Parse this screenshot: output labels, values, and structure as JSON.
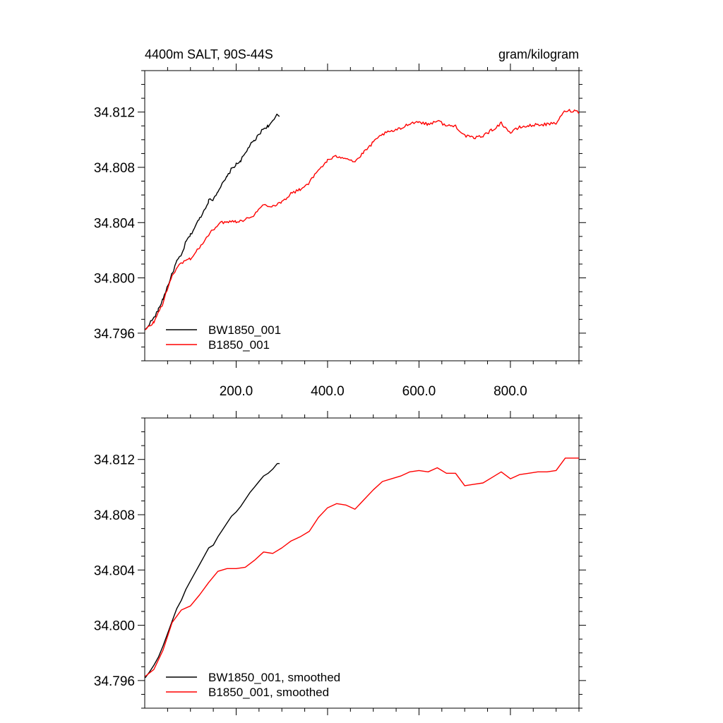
{
  "chart_data": [
    {
      "type": "line",
      "title": "4400m SALT, 90S-44S",
      "units": "gram/kilogram",
      "xlim": [
        0,
        950
      ],
      "ylim": [
        34.794,
        34.815
      ],
      "x_ticks": [
        200,
        400,
        600,
        800
      ],
      "x_tick_labels": [
        "200.0",
        "400.0",
        "600.0",
        "800.0"
      ],
      "y_ticks": [
        34.796,
        34.8,
        34.804,
        34.808,
        34.812
      ],
      "y_tick_labels": [
        "34.796",
        "34.800",
        "34.804",
        "34.808",
        "34.812"
      ],
      "grid": false,
      "legend_position": "bottom-left",
      "series": [
        {
          "name": "BW1850_001",
          "color": "#000000",
          "x": [
            1,
            10,
            20,
            30,
            40,
            50,
            60,
            70,
            80,
            90,
            100,
            110,
            120,
            130,
            140,
            150,
            160,
            170,
            180,
            190,
            200,
            210,
            220,
            230,
            240,
            250,
            260,
            270,
            280,
            290,
            295
          ],
          "y": [
            34.7962,
            34.7967,
            34.7971,
            34.7977,
            34.7985,
            34.7994,
            34.8003,
            34.8012,
            34.8016,
            34.8026,
            34.8031,
            34.8037,
            34.8043,
            34.8049,
            34.8056,
            34.8057,
            34.8063,
            34.8068,
            34.8073,
            34.8079,
            34.8082,
            34.8085,
            34.809,
            34.8096,
            34.8099,
            34.8104,
            34.8108,
            34.811,
            34.8113,
            34.8118,
            34.8117
          ]
        },
        {
          "name": "B1850_001",
          "color": "#ff0000",
          "x": [
            1,
            20,
            40,
            60,
            80,
            100,
            120,
            140,
            160,
            180,
            200,
            220,
            240,
            260,
            280,
            300,
            320,
            340,
            360,
            380,
            400,
            420,
            440,
            460,
            480,
            500,
            520,
            540,
            560,
            580,
            600,
            620,
            640,
            660,
            680,
            700,
            720,
            740,
            760,
            780,
            800,
            820,
            840,
            860,
            880,
            900,
            920,
            940,
            950
          ],
          "y": [
            34.7962,
            34.7968,
            34.7982,
            34.8002,
            34.8011,
            34.8014,
            34.8022,
            34.8031,
            34.8039,
            34.8041,
            34.8041,
            34.8042,
            34.8046,
            34.8053,
            34.8052,
            34.8055,
            34.8061,
            34.8064,
            34.8069,
            34.8078,
            34.8085,
            34.8088,
            34.8087,
            34.8084,
            34.8091,
            34.8098,
            34.8104,
            34.8106,
            34.8108,
            34.8112,
            34.8113,
            34.8111,
            34.8114,
            34.811,
            34.811,
            34.8103,
            34.8101,
            34.8103,
            34.8107,
            34.8112,
            34.8105,
            34.8109,
            34.811,
            34.8111,
            34.8111,
            34.8112,
            34.8121,
            34.8121,
            34.812
          ]
        }
      ]
    },
    {
      "type": "line",
      "title": "",
      "units": "",
      "xlim": [
        0,
        950
      ],
      "ylim": [
        34.794,
        34.815
      ],
      "x_ticks": [
        200,
        400,
        600,
        800
      ],
      "x_tick_labels": [],
      "y_ticks": [
        34.796,
        34.8,
        34.804,
        34.808,
        34.812
      ],
      "y_tick_labels": [
        "34.796",
        "34.800",
        "34.804",
        "34.808",
        "34.812"
      ],
      "grid": false,
      "legend_position": "bottom-left",
      "series": [
        {
          "name": "BW1850_001, smoothed",
          "color": "#000000",
          "x": [
            1,
            10,
            20,
            30,
            40,
            50,
            60,
            70,
            80,
            90,
            100,
            110,
            120,
            130,
            140,
            150,
            160,
            170,
            180,
            190,
            200,
            210,
            220,
            230,
            240,
            250,
            260,
            270,
            280,
            290,
            295
          ],
          "y": [
            34.7962,
            34.7966,
            34.7971,
            34.7977,
            34.7985,
            34.7994,
            34.8003,
            34.8012,
            34.8018,
            34.8026,
            34.8032,
            34.8038,
            34.8044,
            34.805,
            34.8056,
            34.8058,
            34.8064,
            34.8069,
            34.8074,
            34.8079,
            34.8082,
            34.8086,
            34.8091,
            34.8096,
            34.81,
            34.8104,
            34.8108,
            34.811,
            34.8113,
            34.8117,
            34.8117
          ]
        },
        {
          "name": "B1850_001, smoothed",
          "color": "#ff0000",
          "x": [
            1,
            20,
            40,
            60,
            80,
            100,
            120,
            140,
            160,
            180,
            200,
            220,
            240,
            260,
            280,
            300,
            320,
            340,
            360,
            380,
            400,
            420,
            440,
            460,
            480,
            500,
            520,
            540,
            560,
            580,
            600,
            620,
            640,
            660,
            680,
            700,
            720,
            740,
            760,
            780,
            800,
            820,
            840,
            860,
            880,
            900,
            920,
            940,
            950
          ],
          "y": [
            34.7963,
            34.7968,
            34.7982,
            34.8002,
            34.8011,
            34.8014,
            34.8022,
            34.8031,
            34.8039,
            34.8041,
            34.8041,
            34.8042,
            34.8047,
            34.8053,
            34.8052,
            34.8056,
            34.8061,
            34.8064,
            34.8068,
            34.8078,
            34.8085,
            34.8088,
            34.8087,
            34.8084,
            34.8091,
            34.8098,
            34.8104,
            34.8106,
            34.8108,
            34.8111,
            34.8112,
            34.8111,
            34.8114,
            34.811,
            34.811,
            34.8101,
            34.8102,
            34.8103,
            34.8107,
            34.8111,
            34.8106,
            34.8109,
            34.811,
            34.8111,
            34.8111,
            34.8112,
            34.8121,
            34.8121,
            34.8121
          ]
        }
      ]
    }
  ]
}
